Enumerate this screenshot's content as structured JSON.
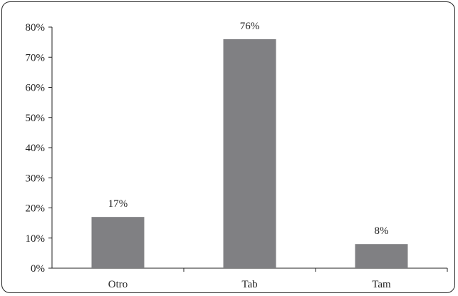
{
  "chart_data": {
    "type": "bar",
    "categories": [
      "Otro",
      "Tab",
      "Tam"
    ],
    "values": [
      17,
      76,
      8
    ],
    "data_labels": [
      "17%",
      "76%",
      "8%"
    ],
    "y_ticks": [
      "0%",
      "10%",
      "20%",
      "30%",
      "40%",
      "50%",
      "60%",
      "70%",
      "80%"
    ],
    "ylim": [
      0,
      80
    ],
    "grid": false,
    "legend": "none",
    "bar_color": "#808083",
    "axis_color": "#222222"
  }
}
